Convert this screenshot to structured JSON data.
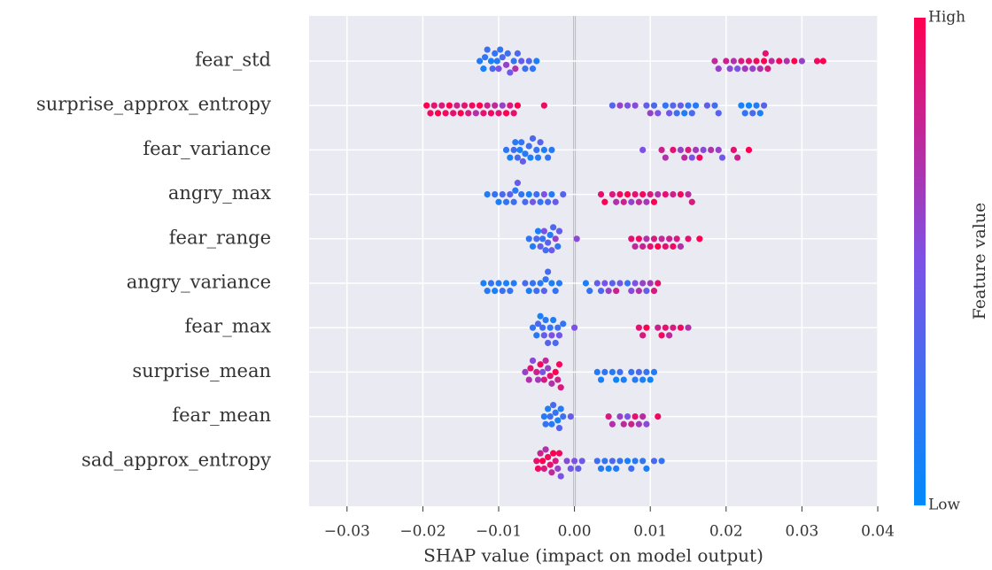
{
  "chart_data": {
    "type": "beeswarm",
    "xlabel": "SHAP value (impact on model output)",
    "xlim": [
      -0.035,
      0.04
    ],
    "xticks": [
      {
        "value": -0.03,
        "label": "−0.03"
      },
      {
        "value": -0.02,
        "label": "−0.02"
      },
      {
        "value": -0.01,
        "label": "−0.01"
      },
      {
        "value": 0,
        "label": "0.00"
      },
      0.01,
      0.02,
      0.03,
      0.04
    ],
    "grid": true,
    "colormap": [
      "#008bfb",
      "#7c52e6",
      "#ff0051"
    ],
    "colorbar": {
      "label": "Feature value",
      "high": "High",
      "low": "Low"
    },
    "features": [
      {
        "name": "fear_std",
        "values": [
          -0.0125,
          -0.012,
          -0.0118,
          -0.0115,
          -0.011,
          -0.0108,
          -0.0105,
          -0.0102,
          -0.01,
          -0.0098,
          -0.0095,
          -0.009,
          -0.0088,
          -0.0085,
          -0.008,
          -0.0078,
          -0.0075,
          -0.007,
          -0.0065,
          -0.006,
          -0.0055,
          -0.005,
          0.0185,
          0.019,
          0.02,
          0.0205,
          0.021,
          0.0215,
          0.022,
          0.0225,
          0.023,
          0.0235,
          0.024,
          0.0245,
          0.025,
          0.0252,
          0.0255,
          0.026,
          0.027,
          0.028,
          0.029,
          0.03,
          0.032,
          0.0328
        ],
        "feature_values": [
          0.15,
          0.1,
          0.2,
          0.25,
          0.1,
          0.3,
          0.2,
          0.15,
          0.5,
          0.2,
          0.3,
          0.6,
          0.25,
          0.45,
          0.2,
          0.7,
          0.3,
          0.4,
          0.25,
          0.35,
          0.2,
          0.1,
          0.75,
          0.6,
          0.8,
          0.55,
          0.7,
          0.5,
          0.85,
          0.65,
          0.9,
          0.6,
          0.95,
          0.7,
          1.0,
          0.9,
          0.85,
          0.75,
          0.95,
          0.7,
          1.0,
          0.6,
          0.95,
          1.0
        ]
      },
      {
        "name": "surprise_approx_entropy",
        "values": [
          -0.0195,
          -0.019,
          -0.0185,
          -0.018,
          -0.0175,
          -0.017,
          -0.0165,
          -0.016,
          -0.0155,
          -0.015,
          -0.0145,
          -0.014,
          -0.0135,
          -0.013,
          -0.0125,
          -0.012,
          -0.0115,
          -0.011,
          -0.0105,
          -0.01,
          -0.0095,
          -0.009,
          -0.0085,
          -0.008,
          -0.0075,
          -0.004,
          0.005,
          0.006,
          0.007,
          0.008,
          0.0095,
          0.01,
          0.0105,
          0.011,
          0.012,
          0.0125,
          0.013,
          0.0135,
          0.014,
          0.0145,
          0.015,
          0.0155,
          0.016,
          0.0175,
          0.0185,
          0.019,
          0.022,
          0.0225,
          0.023,
          0.0235,
          0.024,
          0.0245,
          0.025
        ],
        "feature_values": [
          1.0,
          0.95,
          0.9,
          1.0,
          0.85,
          0.95,
          1.0,
          0.9,
          0.8,
          1.0,
          0.9,
          0.85,
          0.95,
          0.7,
          1.0,
          0.9,
          0.8,
          0.95,
          0.75,
          0.9,
          0.6,
          1.0,
          0.85,
          0.9,
          1.0,
          0.95,
          0.35,
          0.6,
          0.5,
          0.55,
          0.4,
          0.6,
          0.3,
          0.5,
          0.2,
          0.45,
          0.35,
          0.25,
          0.4,
          0.1,
          0.2,
          0.3,
          0.15,
          0.4,
          0.25,
          0.35,
          0.1,
          0.2,
          0.05,
          0.3,
          0.15,
          0.1,
          0.35
        ]
      },
      {
        "name": "fear_variance",
        "values": [
          -0.009,
          -0.0085,
          -0.008,
          -0.0078,
          -0.0075,
          -0.0072,
          -0.007,
          -0.0068,
          -0.0065,
          -0.006,
          -0.0058,
          -0.0055,
          -0.005,
          -0.0048,
          -0.0045,
          -0.004,
          -0.0035,
          -0.003,
          0.009,
          0.0115,
          0.012,
          0.013,
          0.014,
          0.0145,
          0.015,
          0.0155,
          0.016,
          0.0165,
          0.017,
          0.018,
          0.019,
          0.0195,
          0.021,
          0.0215,
          0.023
        ],
        "feature_values": [
          0.2,
          0.1,
          0.25,
          0.15,
          0.3,
          0.1,
          0.2,
          0.4,
          0.15,
          0.25,
          0.1,
          0.3,
          0.2,
          0.15,
          0.35,
          0.1,
          0.2,
          0.15,
          0.5,
          0.8,
          0.7,
          0.9,
          0.6,
          0.75,
          0.85,
          0.5,
          0.65,
          0.95,
          0.55,
          0.7,
          0.6,
          0.45,
          0.9,
          0.8,
          1.0
        ]
      },
      {
        "name": "angry_max",
        "values": [
          -0.0115,
          -0.0105,
          -0.01,
          -0.0095,
          -0.009,
          -0.0085,
          -0.008,
          -0.0078,
          -0.0075,
          -0.007,
          -0.0065,
          -0.006,
          -0.0055,
          -0.005,
          -0.0045,
          -0.004,
          -0.0035,
          -0.003,
          -0.0025,
          -0.0015,
          0.0035,
          0.004,
          0.005,
          0.0055,
          0.006,
          0.0065,
          0.007,
          0.0075,
          0.008,
          0.0085,
          0.009,
          0.0095,
          0.01,
          0.0105,
          0.011,
          0.012,
          0.013,
          0.014,
          0.015,
          0.0155
        ],
        "feature_values": [
          0.15,
          0.2,
          0.1,
          0.3,
          0.2,
          0.35,
          0.25,
          0.15,
          0.4,
          0.2,
          0.3,
          0.1,
          0.45,
          0.25,
          0.2,
          0.5,
          0.3,
          0.15,
          0.4,
          0.35,
          0.9,
          1.0,
          0.85,
          0.7,
          0.95,
          0.8,
          1.0,
          0.6,
          0.9,
          0.75,
          0.95,
          0.65,
          0.85,
          1.0,
          0.7,
          0.9,
          0.8,
          0.95,
          0.75,
          0.85
        ]
      },
      {
        "name": "fear_range",
        "values": [
          -0.006,
          -0.0055,
          -0.005,
          -0.0048,
          -0.0045,
          -0.0042,
          -0.004,
          -0.0038,
          -0.0035,
          -0.0032,
          -0.003,
          -0.0028,
          -0.0025,
          -0.0022,
          -0.002,
          0.0003,
          0.0075,
          0.008,
          0.0085,
          0.009,
          0.0095,
          0.01,
          0.0105,
          0.011,
          0.0115,
          0.012,
          0.0125,
          0.013,
          0.0135,
          0.014,
          0.015,
          0.0165
        ],
        "feature_values": [
          0.2,
          0.15,
          0.3,
          0.1,
          0.4,
          0.2,
          0.5,
          0.25,
          0.35,
          0.15,
          0.45,
          0.3,
          0.6,
          0.2,
          0.4,
          0.55,
          0.9,
          0.75,
          0.95,
          0.8,
          0.7,
          0.9,
          0.85,
          1.0,
          0.75,
          0.9,
          0.8,
          0.95,
          0.85,
          0.7,
          0.9,
          1.0
        ]
      },
      {
        "name": "angry_variance",
        "values": [
          -0.012,
          -0.0115,
          -0.011,
          -0.0105,
          -0.01,
          -0.0095,
          -0.009,
          -0.0085,
          -0.008,
          -0.0065,
          -0.006,
          -0.0055,
          -0.005,
          -0.0045,
          -0.004,
          -0.0038,
          -0.0035,
          -0.003,
          -0.0025,
          -0.002,
          0.0015,
          0.002,
          0.003,
          0.0035,
          0.004,
          0.0045,
          0.005,
          0.0055,
          0.006,
          0.007,
          0.0075,
          0.008,
          0.0085,
          0.009,
          0.0095,
          0.01,
          0.0105,
          0.011
        ],
        "feature_values": [
          0.1,
          0.15,
          0.2,
          0.1,
          0.15,
          0.25,
          0.1,
          0.2,
          0.15,
          0.3,
          0.1,
          0.2,
          0.25,
          0.15,
          0.35,
          0.2,
          0.3,
          0.1,
          0.2,
          0.15,
          0.1,
          0.2,
          0.4,
          0.3,
          0.5,
          0.6,
          0.35,
          0.8,
          0.45,
          0.2,
          0.55,
          0.5,
          0.7,
          0.6,
          0.4,
          0.65,
          0.85,
          0.9
        ]
      },
      {
        "name": "fear_max",
        "values": [
          -0.0055,
          -0.005,
          -0.0048,
          -0.0045,
          -0.0042,
          -0.004,
          -0.0038,
          -0.0035,
          -0.0032,
          -0.003,
          -0.0028,
          -0.0025,
          -0.0022,
          -0.002,
          -0.0015,
          0.0,
          0.0085,
          0.009,
          0.0095,
          0.011,
          0.0115,
          0.012,
          0.0125,
          0.013,
          0.014,
          0.015
        ],
        "feature_values": [
          0.2,
          0.15,
          0.3,
          0.1,
          0.25,
          0.4,
          0.15,
          0.35,
          0.2,
          0.5,
          0.1,
          0.3,
          0.25,
          0.45,
          0.2,
          0.5,
          0.9,
          0.85,
          1.0,
          0.8,
          0.95,
          0.9,
          0.75,
          0.85,
          0.95,
          0.7
        ]
      },
      {
        "name": "surprise_mean",
        "values": [
          -0.0065,
          -0.006,
          -0.0058,
          -0.0055,
          -0.005,
          -0.0048,
          -0.0045,
          -0.0042,
          -0.004,
          -0.0038,
          -0.0035,
          -0.0032,
          -0.003,
          -0.0025,
          -0.0022,
          -0.002,
          -0.0018,
          0.003,
          0.0035,
          0.004,
          0.005,
          0.0055,
          0.006,
          0.0065,
          0.0075,
          0.008,
          0.0085,
          0.009,
          0.0095,
          0.01,
          0.0105
        ],
        "feature_values": [
          0.6,
          0.7,
          0.9,
          0.55,
          0.8,
          0.65,
          0.95,
          0.5,
          0.85,
          0.75,
          0.6,
          0.9,
          0.7,
          1.0,
          0.8,
          0.95,
          0.85,
          0.15,
          0.1,
          0.2,
          0.15,
          0.05,
          0.25,
          0.1,
          0.2,
          0.15,
          0.3,
          0.1,
          0.2,
          0.05,
          0.15
        ]
      },
      {
        "name": "fear_mean",
        "values": [
          -0.004,
          -0.0038,
          -0.0035,
          -0.0032,
          -0.003,
          -0.0028,
          -0.0025,
          -0.0022,
          -0.002,
          -0.0018,
          -0.0015,
          -0.0005,
          0.0045,
          0.005,
          0.006,
          0.0065,
          0.007,
          0.0075,
          0.008,
          0.0085,
          0.009,
          0.0095,
          0.011
        ],
        "feature_values": [
          0.15,
          0.2,
          0.1,
          0.25,
          0.15,
          0.3,
          0.2,
          0.1,
          0.35,
          0.15,
          0.25,
          0.4,
          0.85,
          0.7,
          0.6,
          0.75,
          0.5,
          0.8,
          0.9,
          0.65,
          0.75,
          0.55,
          0.95
        ]
      },
      {
        "name": "sad_approx_entropy",
        "values": [
          -0.005,
          -0.0048,
          -0.0045,
          -0.0042,
          -0.004,
          -0.0038,
          -0.0035,
          -0.0032,
          -0.003,
          -0.0028,
          -0.0025,
          -0.0022,
          -0.002,
          -0.0018,
          -0.001,
          -0.0005,
          0.0,
          0.0005,
          0.001,
          0.003,
          0.0035,
          0.004,
          0.0045,
          0.005,
          0.0055,
          0.006,
          0.007,
          0.0075,
          0.008,
          0.009,
          0.0095,
          0.0105,
          0.0115
        ],
        "feature_values": [
          0.9,
          0.95,
          0.8,
          1.0,
          0.85,
          0.7,
          0.95,
          0.9,
          0.75,
          1.0,
          0.85,
          0.6,
          0.95,
          0.5,
          0.55,
          0.45,
          0.5,
          0.4,
          0.45,
          0.25,
          0.15,
          0.2,
          0.1,
          0.3,
          0.15,
          0.2,
          0.1,
          0.25,
          0.15,
          0.2,
          0.1,
          0.3,
          0.2
        ]
      }
    ]
  }
}
